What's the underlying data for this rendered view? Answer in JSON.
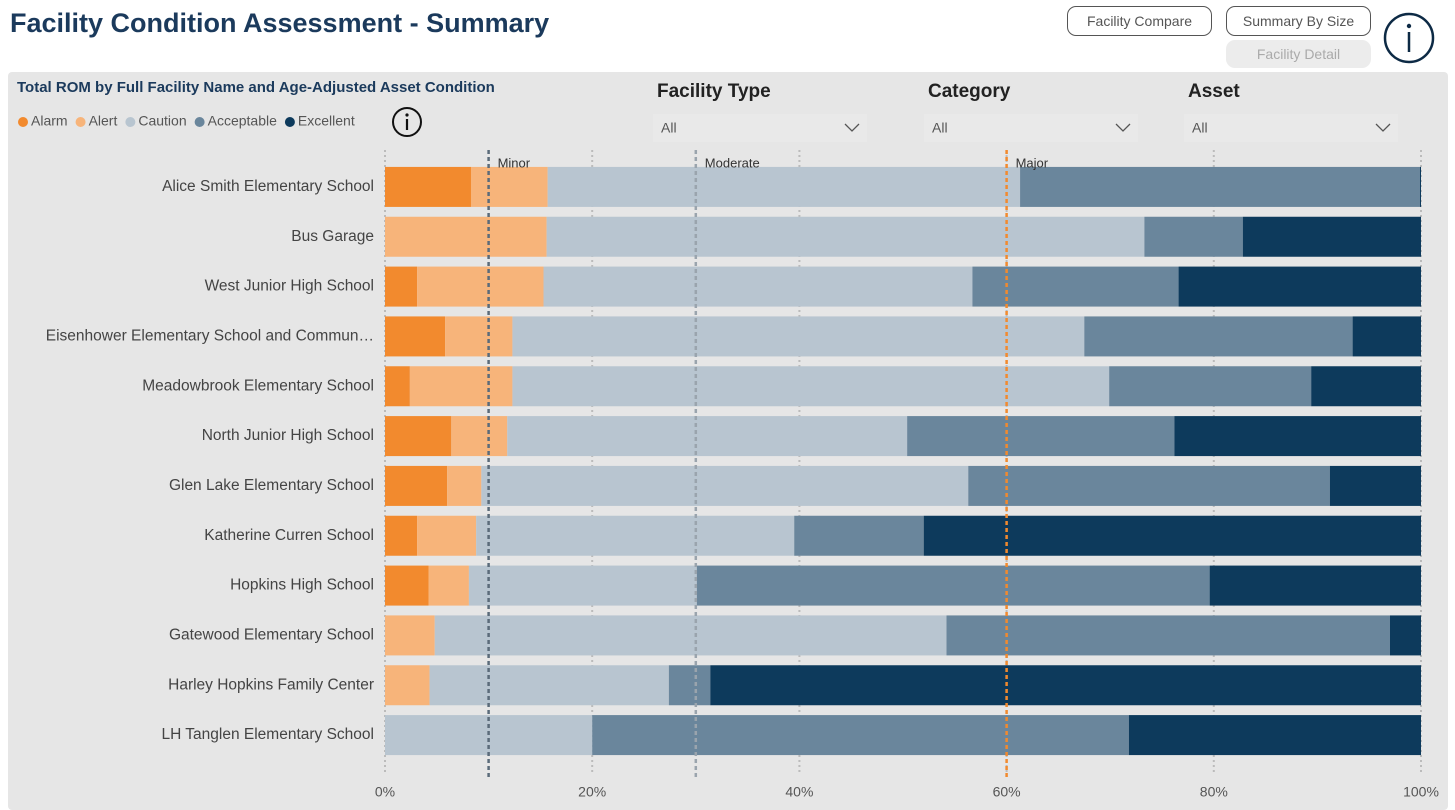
{
  "header": {
    "title": "Facility Condition Assessment - Summary"
  },
  "buttons": [
    "Facility Compare",
    "Summary By Size",
    "Facility Detail"
  ],
  "filters": [
    {
      "label": "Facility Type",
      "value": "All"
    },
    {
      "label": "Category",
      "value": "All"
    },
    {
      "label": "Asset",
      "value": "All"
    }
  ],
  "chart_data": {
    "type": "stacked-bar-horizontal",
    "title": "Total ROM by Full Facility Name and Age-Adjusted Asset Condition",
    "categories": [
      "Alice Smith Elementary School",
      "Bus Garage",
      "West Junior High School",
      "Eisenhower Elementary School and Commun…",
      "Meadowbrook Elementary School",
      "North Junior High School",
      "Glen Lake Elementary School",
      "Katherine Curren School",
      "Hopkins High School",
      "Gatewood Elementary School",
      "Harley Hopkins Family Center",
      "LH Tanglen Elementary School"
    ],
    "series": [
      {
        "name": "Alarm",
        "color": "#f28a2e",
        "values": [
          8.3,
          0,
          3.1,
          5.8,
          2.4,
          6.4,
          6.0,
          3.1,
          4.2,
          0,
          0,
          0
        ]
      },
      {
        "name": "Alert",
        "color": "#f7b47a",
        "values": [
          7.4,
          15.6,
          12.2,
          6.5,
          9.9,
          5.4,
          3.3,
          5.7,
          3.9,
          4.8,
          4.3,
          0
        ]
      },
      {
        "name": "Caution",
        "color": "#b8c5d0",
        "values": [
          45.6,
          57.7,
          41.4,
          55.2,
          57.6,
          38.6,
          47.0,
          30.7,
          22.0,
          49.4,
          23.1,
          20.0
        ]
      },
      {
        "name": "Acceptable",
        "color": "#6a869c",
        "values": [
          38.6,
          9.5,
          19.9,
          25.9,
          19.5,
          25.8,
          34.9,
          12.5,
          49.5,
          42.8,
          4.0,
          51.8
        ]
      },
      {
        "name": "Excellent",
        "color": "#0d3a5c",
        "values": [
          0.1,
          17.2,
          23.4,
          6.6,
          10.6,
          23.8,
          8.8,
          48.0,
          20.4,
          3.0,
          68.6,
          28.2
        ]
      }
    ],
    "xlim": [
      0,
      100
    ],
    "xticks": [
      {
        "value": 0,
        "label": "0%"
      },
      {
        "value": 20,
        "label": "20%"
      },
      {
        "value": 40,
        "label": "40%"
      },
      {
        "value": 60,
        "label": "60%"
      },
      {
        "value": 80,
        "label": "80%"
      },
      {
        "value": 100,
        "label": "100%"
      }
    ],
    "grid": true,
    "reference_lines": [
      {
        "label": "Minor",
        "value": 10,
        "color": "#5b6b7a"
      },
      {
        "label": "Moderate",
        "value": 30,
        "color": "#9aa4ad"
      },
      {
        "label": "Major",
        "value": 60,
        "color": "#f28a2e"
      }
    ]
  }
}
